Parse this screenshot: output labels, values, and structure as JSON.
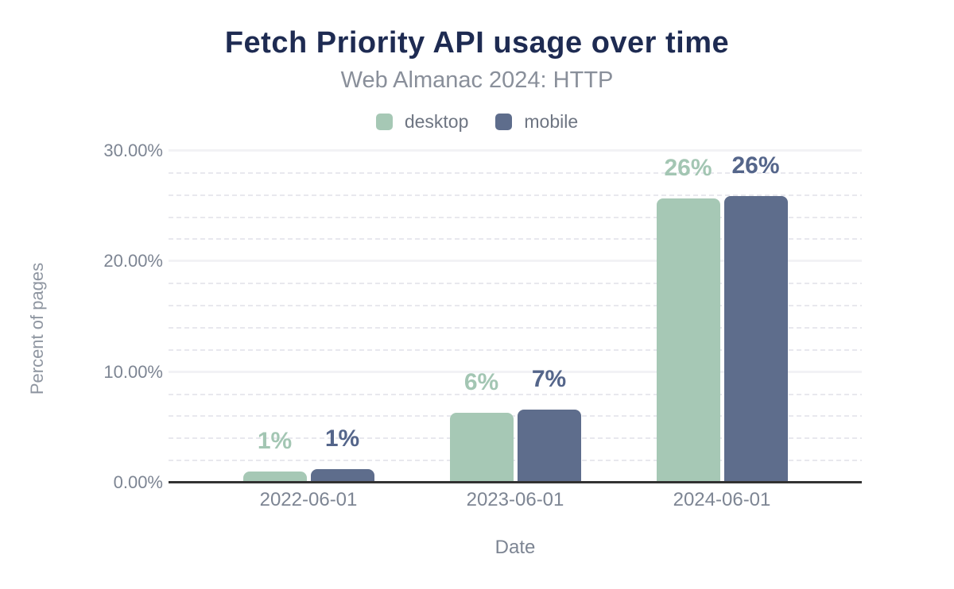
{
  "header": {
    "title": "Fetch Priority API usage over time",
    "subtitle": "Web Almanac 2024: HTTP"
  },
  "chart_data": {
    "type": "bar",
    "title": "Fetch Priority API usage over time",
    "subtitle": "Web Almanac 2024: HTTP",
    "xlabel": "Date",
    "ylabel": "Percent of pages",
    "categories": [
      "2022-06-01",
      "2023-06-01",
      "2024-06-01"
    ],
    "series": [
      {
        "name": "desktop",
        "color": "#a6c8b5",
        "label_color": "#a3c6b3",
        "values": [
          1.0,
          6.3,
          25.7
        ],
        "labels": [
          "1%",
          "6%",
          "26%"
        ]
      },
      {
        "name": "mobile",
        "color": "#5e6d8c",
        "label_color": "#54658a",
        "values": [
          1.2,
          6.6,
          25.9
        ],
        "labels": [
          "1%",
          "7%",
          "26%"
        ]
      }
    ],
    "ylim": [
      0,
      30
    ],
    "yticks": [
      {
        "value": 0,
        "label": "0.00%"
      },
      {
        "value": 10,
        "label": "10.00%"
      },
      {
        "value": 20,
        "label": "20.00%"
      },
      {
        "value": 30,
        "label": "30.00%"
      }
    ],
    "minor_grid_step": 2,
    "major_grid_step": 10,
    "grid": true,
    "legend_position": "top"
  },
  "colors": {
    "title": "#1e2b52",
    "subtitle": "#898f9a",
    "axis_line": "#323232",
    "tick_text": "#7d8593",
    "major_gridline": "#f2f2f5",
    "minor_gridline": "#e8e8ee",
    "background": "#ffffff"
  }
}
